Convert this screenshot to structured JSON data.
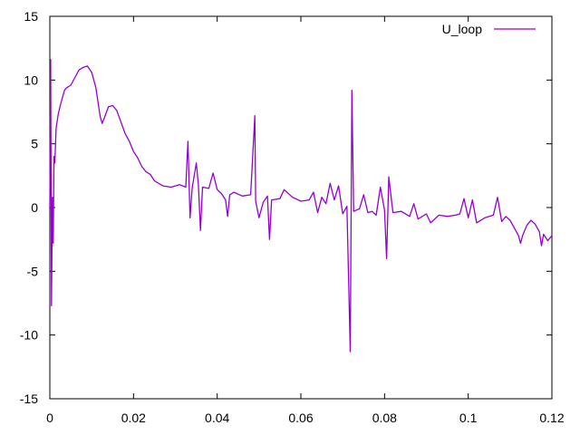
{
  "chart_data": {
    "type": "line",
    "title": "",
    "xlabel": "",
    "ylabel": "",
    "xlim": [
      0,
      0.12
    ],
    "ylim": [
      -15,
      15
    ],
    "xticks": [
      "0",
      "0.02",
      "0.04",
      "0.06",
      "0.08",
      "0.1",
      "0.12"
    ],
    "yticks": [
      "15",
      "10",
      "5",
      "0",
      "-5",
      "-10",
      "-15"
    ],
    "grid": false,
    "legend": {
      "position": "top-right"
    },
    "series": [
      {
        "name": "U_loop",
        "color": "#9400d3",
        "points": [
          [
            0.0,
            0.0
          ],
          [
            0.0002,
            11.6
          ],
          [
            0.0004,
            -7.7
          ],
          [
            0.0006,
            0.8
          ],
          [
            0.0008,
            -2.8
          ],
          [
            0.001,
            4.0
          ],
          [
            0.0012,
            3.5
          ],
          [
            0.0015,
            6.2
          ],
          [
            0.002,
            7.3
          ],
          [
            0.0025,
            8.0
          ],
          [
            0.003,
            8.6
          ],
          [
            0.0035,
            9.2
          ],
          [
            0.004,
            9.4
          ],
          [
            0.005,
            9.6
          ],
          [
            0.006,
            10.2
          ],
          [
            0.007,
            10.8
          ],
          [
            0.008,
            11.0
          ],
          [
            0.009,
            11.1
          ],
          [
            0.01,
            10.6
          ],
          [
            0.011,
            9.4
          ],
          [
            0.012,
            7.2
          ],
          [
            0.0125,
            6.6
          ],
          [
            0.013,
            7.0
          ],
          [
            0.014,
            7.9
          ],
          [
            0.015,
            8.0
          ],
          [
            0.016,
            7.6
          ],
          [
            0.017,
            6.7
          ],
          [
            0.018,
            5.8
          ],
          [
            0.019,
            5.2
          ],
          [
            0.02,
            4.4
          ],
          [
            0.021,
            3.9
          ],
          [
            0.022,
            3.2
          ],
          [
            0.023,
            2.8
          ],
          [
            0.024,
            2.6
          ],
          [
            0.025,
            2.1
          ],
          [
            0.027,
            1.7
          ],
          [
            0.029,
            1.6
          ],
          [
            0.031,
            1.8
          ],
          [
            0.0325,
            1.6
          ],
          [
            0.033,
            5.2
          ],
          [
            0.0335,
            -0.8
          ],
          [
            0.034,
            1.5
          ],
          [
            0.035,
            3.5
          ],
          [
            0.0355,
            1.8
          ],
          [
            0.036,
            -1.8
          ],
          [
            0.0365,
            1.6
          ],
          [
            0.038,
            1.5
          ],
          [
            0.039,
            2.7
          ],
          [
            0.04,
            1.4
          ],
          [
            0.041,
            1.1
          ],
          [
            0.042,
            0.6
          ],
          [
            0.0425,
            -0.7
          ],
          [
            0.043,
            1.0
          ],
          [
            0.044,
            1.2
          ],
          [
            0.046,
            0.9
          ],
          [
            0.048,
            1.0
          ],
          [
            0.049,
            7.2
          ],
          [
            0.0492,
            0.5
          ],
          [
            0.05,
            -0.8
          ],
          [
            0.051,
            0.4
          ],
          [
            0.052,
            0.9
          ],
          [
            0.0525,
            -2.5
          ],
          [
            0.053,
            0.6
          ],
          [
            0.055,
            0.7
          ],
          [
            0.056,
            1.4
          ],
          [
            0.058,
            0.8
          ],
          [
            0.06,
            0.5
          ],
          [
            0.062,
            0.6
          ],
          [
            0.063,
            1.2
          ],
          [
            0.064,
            -0.4
          ],
          [
            0.065,
            0.8
          ],
          [
            0.066,
            0.3
          ],
          [
            0.067,
            1.9
          ],
          [
            0.068,
            0.6
          ],
          [
            0.069,
            1.7
          ],
          [
            0.07,
            -0.5
          ],
          [
            0.071,
            0.1
          ],
          [
            0.0718,
            -11.3
          ],
          [
            0.0722,
            9.2
          ],
          [
            0.0726,
            -0.3
          ],
          [
            0.074,
            -0.1
          ],
          [
            0.075,
            1.0
          ],
          [
            0.076,
            -0.4
          ],
          [
            0.077,
            -0.3
          ],
          [
            0.078,
            -0.6
          ],
          [
            0.079,
            1.6
          ],
          [
            0.08,
            -0.2
          ],
          [
            0.0805,
            -4.0
          ],
          [
            0.081,
            2.4
          ],
          [
            0.082,
            -0.4
          ],
          [
            0.084,
            -0.3
          ],
          [
            0.086,
            -0.7
          ],
          [
            0.087,
            0.3
          ],
          [
            0.088,
            -0.9
          ],
          [
            0.09,
            -0.5
          ],
          [
            0.091,
            -1.2
          ],
          [
            0.093,
            -0.6
          ],
          [
            0.095,
            -0.7
          ],
          [
            0.097,
            -0.6
          ],
          [
            0.098,
            -0.5
          ],
          [
            0.099,
            0.7
          ],
          [
            0.1,
            -0.8
          ],
          [
            0.101,
            0.6
          ],
          [
            0.102,
            -1.2
          ],
          [
            0.104,
            -0.8
          ],
          [
            0.106,
            -0.6
          ],
          [
            0.107,
            0.8
          ],
          [
            0.108,
            -1.1
          ],
          [
            0.109,
            -0.7
          ],
          [
            0.11,
            -1.0
          ],
          [
            0.111,
            -1.6
          ],
          [
            0.112,
            -2.2
          ],
          [
            0.1125,
            -2.8
          ],
          [
            0.113,
            -2.2
          ],
          [
            0.114,
            -1.4
          ],
          [
            0.115,
            -1.0
          ],
          [
            0.116,
            -1.3
          ],
          [
            0.117,
            -1.9
          ],
          [
            0.1175,
            -3.0
          ],
          [
            0.118,
            -2.1
          ],
          [
            0.119,
            -2.6
          ],
          [
            0.12,
            -2.2
          ]
        ]
      }
    ]
  }
}
